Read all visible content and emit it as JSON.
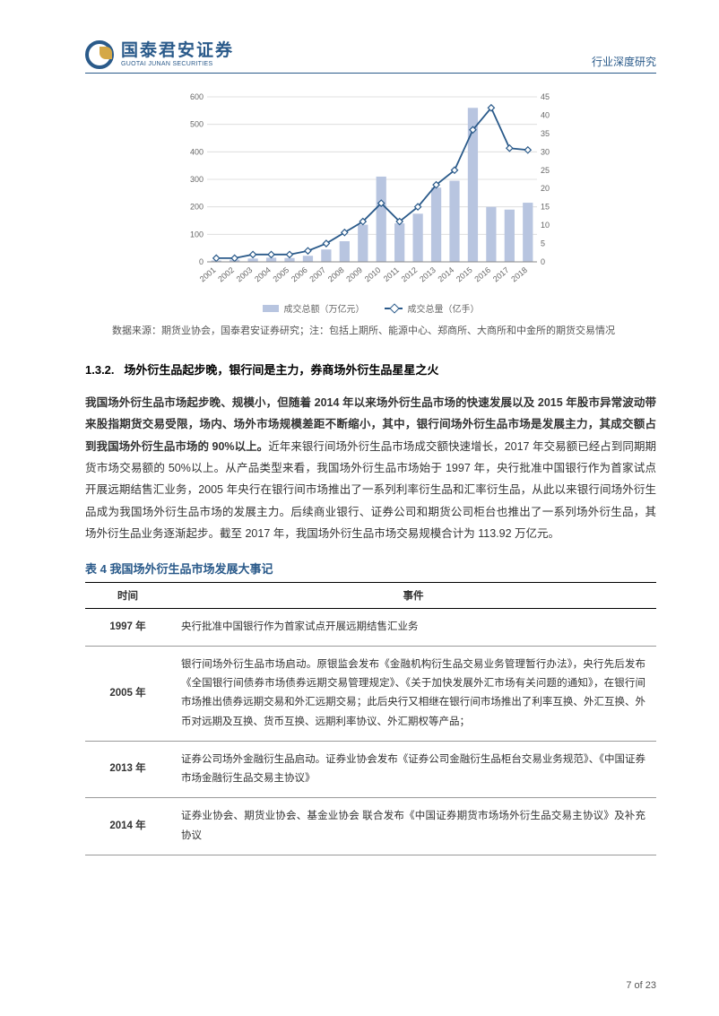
{
  "header": {
    "logo_cn": "国泰君安证券",
    "logo_en": "GUOTAI JUNAN SECURITIES",
    "right_text": "行业深度研究"
  },
  "chart": {
    "type": "bar-line-combo",
    "categories": [
      "2001",
      "2002",
      "2003",
      "2004",
      "2005",
      "2006",
      "2007",
      "2008",
      "2009",
      "2010",
      "2011",
      "2012",
      "2013",
      "2014",
      "2015",
      "2016",
      "2017",
      "2018"
    ],
    "bar_values": [
      5,
      8,
      12,
      15,
      14,
      22,
      45,
      75,
      135,
      310,
      140,
      175,
      270,
      295,
      560,
      200,
      190,
      215
    ],
    "line_values": [
      1,
      1,
      2,
      2,
      2,
      3,
      5,
      8,
      11,
      16,
      11,
      15,
      21,
      25,
      36,
      42,
      31,
      30.5
    ],
    "bar_color": "#b8c5e0",
    "line_color": "#2a5a8a",
    "left_ylim": [
      0,
      600
    ],
    "left_ytick_step": 100,
    "right_ylim": [
      0,
      45
    ],
    "right_ytick_step": 5,
    "grid_color": "#d9d9d9",
    "background_color": "#ffffff",
    "axis_label_fontsize": 9,
    "legend_bar_label": "成交总额（万亿元）",
    "legend_line_label": "成交总量（亿手）"
  },
  "source_note": "数据来源：期货业协会，国泰君安证券研究；注：包括上期所、能源中心、郑商所、大商所和中金所的期货交易情况",
  "section": {
    "number": "1.3.2.",
    "title": "场外衍生品起步晚，银行间是主力，券商场外衍生品星星之火"
  },
  "body": {
    "bold_part": "我国场外衍生品市场起步晚、规模小，但随着 2014 年以来场外衍生品市场的快速发展以及 2015 年股市异常波动带来股指期货交易受限，场内、场外市场规模差距不断缩小，其中，银行间场外衍生品市场是发展主力，其成交额占到我国场外衍生品市场的 90%以上。",
    "rest_part": "近年来银行间场外衍生品市场成交额快速增长，2017 年交易额已经占到同期期货市场交易额的 50%以上。从产品类型来看，我国场外衍生品市场始于 1997 年，央行批准中国银行作为首家试点开展远期结售汇业务，2005 年央行在银行间市场推出了一系列利率衍生品和汇率衍生品，从此以来银行间场外衍生品成为我国场外衍生品市场的发展主力。后续商业银行、证券公司和期货公司柜台也推出了一系列场外衍生品，其场外衍生品业务逐渐起步。截至 2017 年，我国场外衍生品市场交易规模合计为 113.92 万亿元。"
  },
  "table": {
    "title": "表 4 我国场外衍生品市场发展大事记",
    "columns": [
      "时间",
      "事件"
    ],
    "rows": [
      [
        "1997 年",
        "央行批准中国银行作为首家试点开展远期结售汇业务"
      ],
      [
        "2005 年",
        "银行间场外衍生品市场启动。原银监会发布《金融机构衍生品交易业务管理暂行办法》，央行先后发布《全国银行间债券市场债券远期交易管理规定》、《关于加快发展外汇市场有关问题的通知》，在银行间市场推出债券远期交易和外汇远期交易；此后央行又相继在银行间市场推出了利率互换、外汇互换、外币对远期及互换、货币互换、远期利率协议、外汇期权等产品；"
      ],
      [
        "2013 年",
        "证券公司场外金融衍生品启动。证券业协会发布《证券公司金融衍生品柜台交易业务规范》、《中国证券市场金融衍生品交易主协议》"
      ],
      [
        "2014 年",
        "证券业协会、期货业协会、基金业协会 联合发布《中国证券期货市场场外衍生品交易主协议》及补充协议"
      ]
    ]
  },
  "footer": {
    "page": "7 of 23"
  }
}
